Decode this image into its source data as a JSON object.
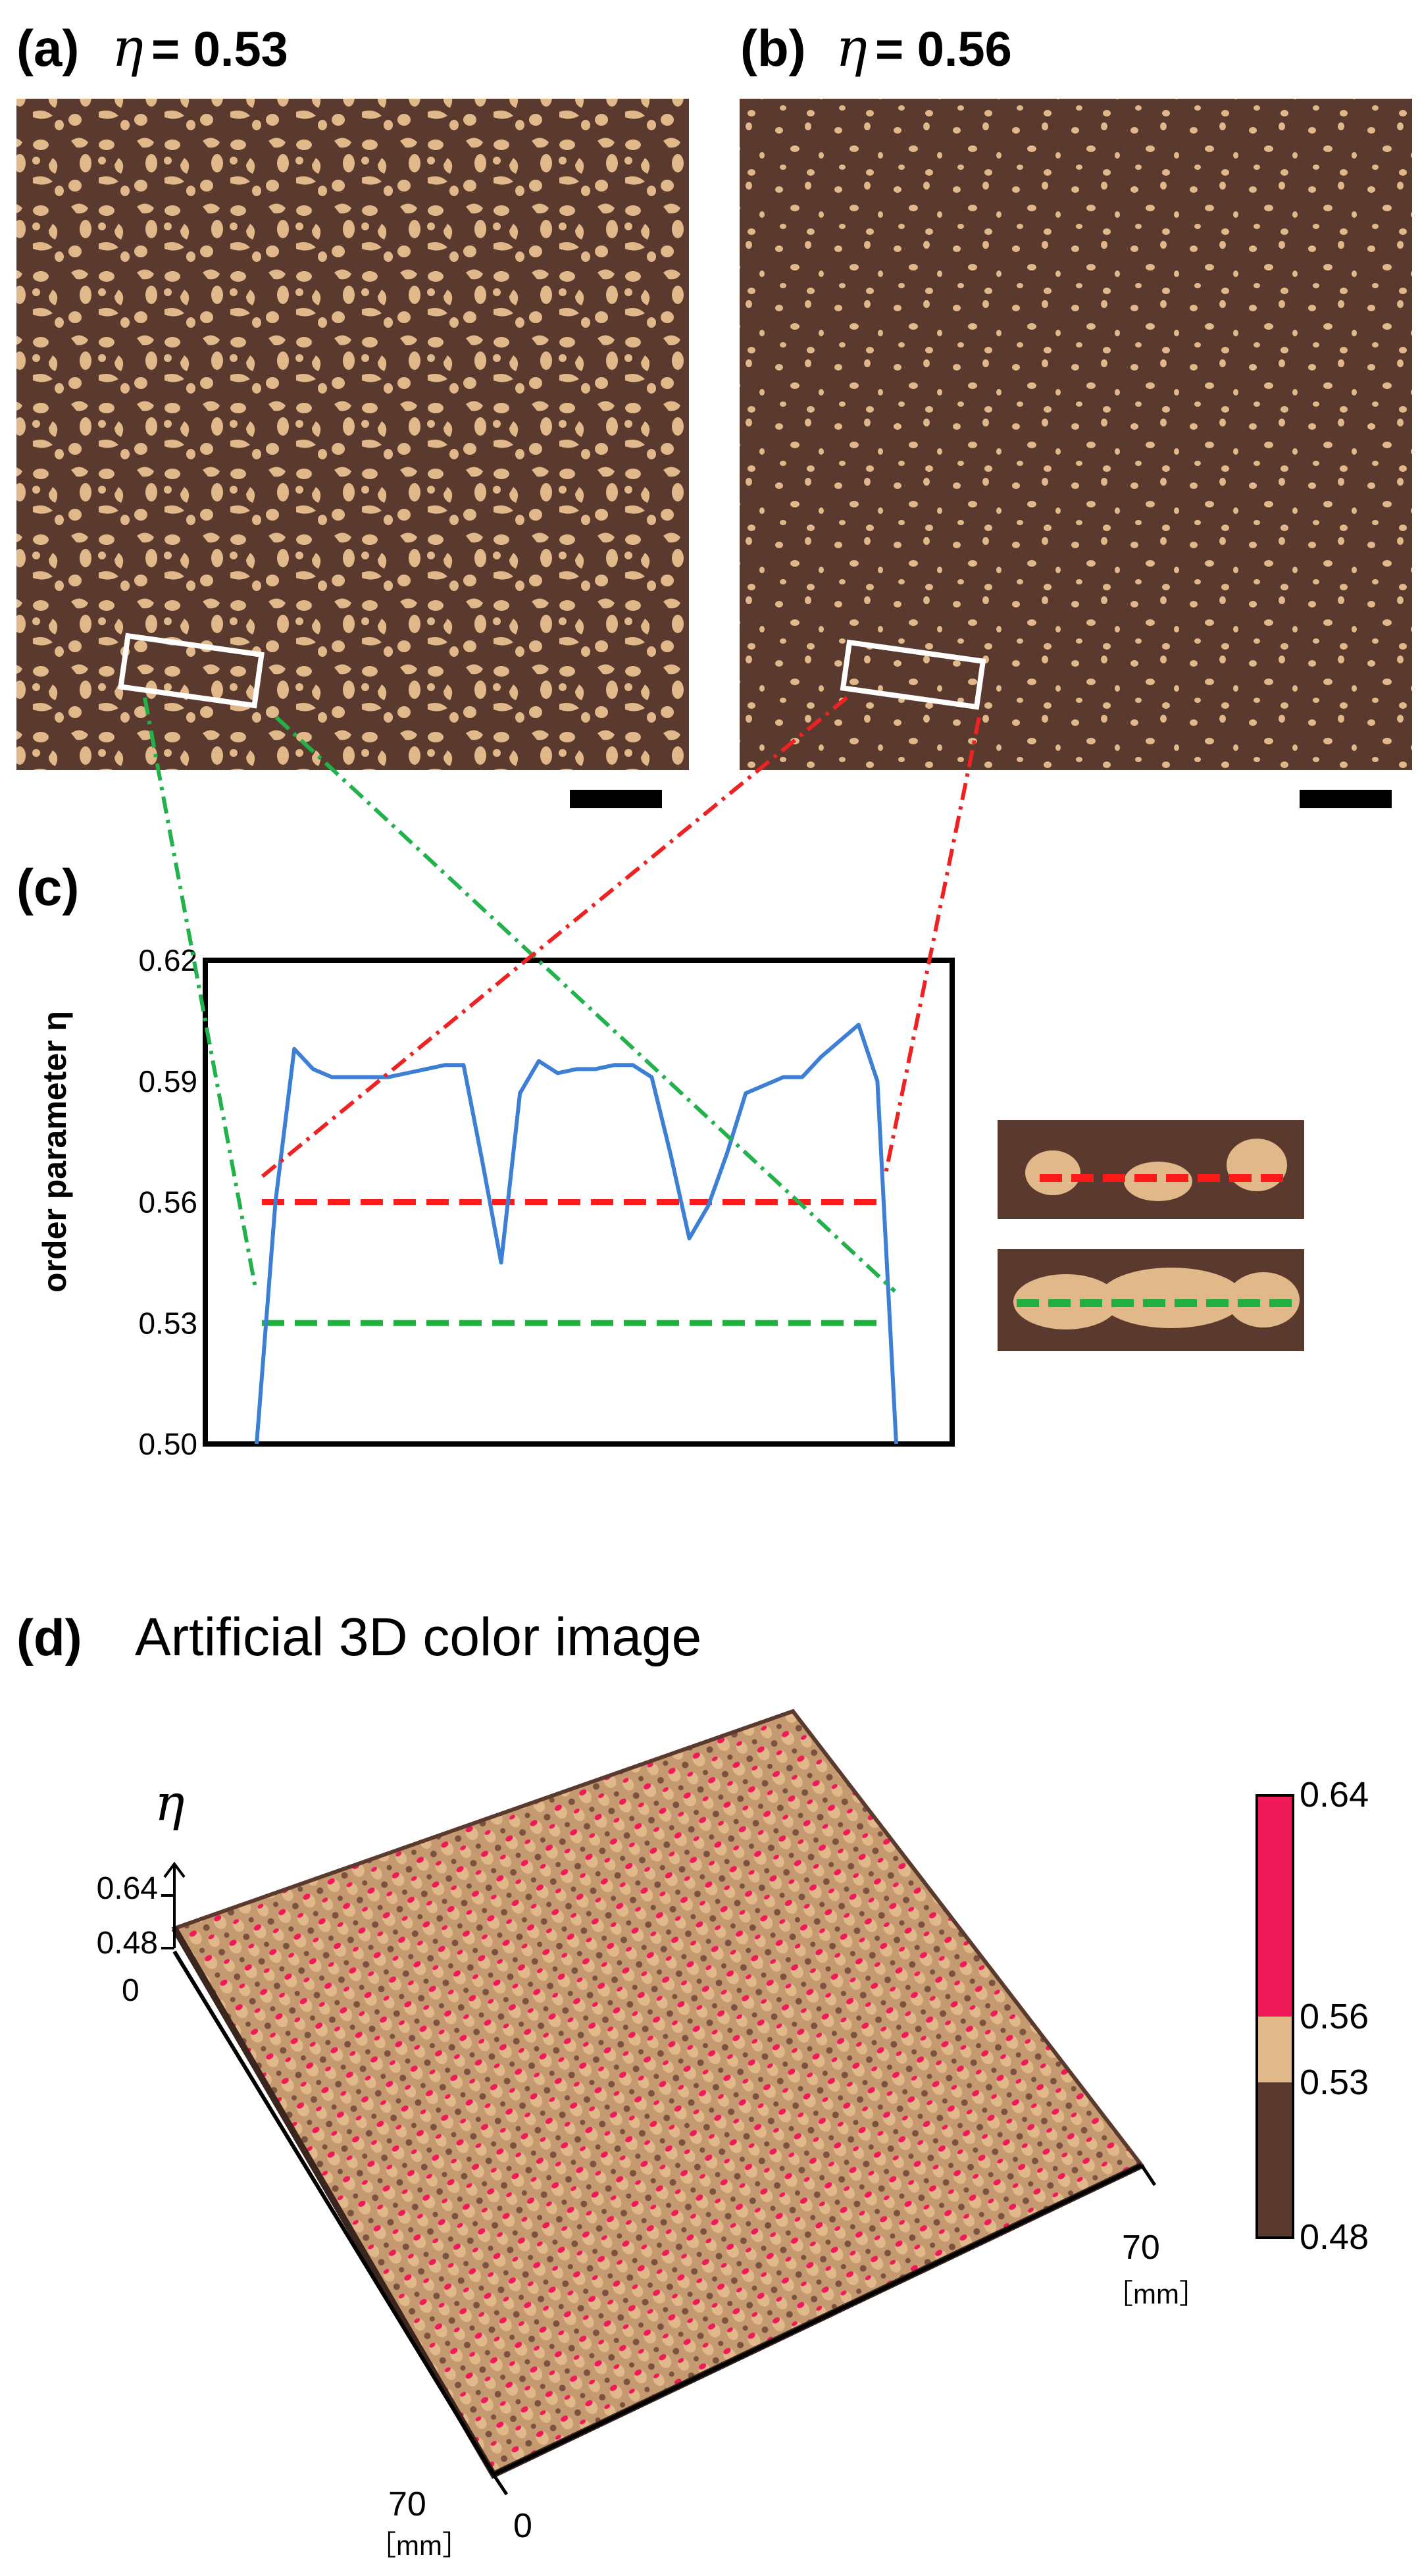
{
  "panels": {
    "a": {
      "label": "(a)",
      "symbol": "η",
      "value": "= 0.53"
    },
    "b": {
      "label": "(b)",
      "symbol": "η",
      "value": "= 0.56"
    },
    "c": {
      "label": "(c)"
    },
    "d": {
      "label": "(d)",
      "title": "Artificial 3D color image"
    }
  },
  "colors": {
    "background_brown": "#5a3a2e",
    "pattern_tan": "#e1b889",
    "peak_pink": "#f0195a",
    "plot_line": "#3d7fd4",
    "threshold_red": "#ff1a1a",
    "threshold_green": "#20b040",
    "connector_green": "#22b24c",
    "connector_red": "#ee2222"
  },
  "chart_data": {
    "type": "line",
    "ylabel": "order parameter η",
    "ylim": [
      0.5,
      0.62
    ],
    "yticks": [
      "0.62",
      "0.59",
      "0.56",
      "0.53",
      "0.50"
    ],
    "series": [
      {
        "values": [
          0.5,
          0.56,
          0.598,
          0.593,
          0.591,
          0.591,
          0.591,
          0.591,
          0.592,
          0.593,
          0.594,
          0.594,
          0.57,
          0.545,
          0.587,
          0.595,
          0.592,
          0.593,
          0.593,
          0.594,
          0.594,
          0.591,
          0.572,
          0.551,
          0.559,
          0.572,
          0.587,
          0.589,
          0.591,
          0.591,
          0.596,
          0.6,
          0.604,
          0.59,
          0.5
        ]
      }
    ],
    "thresholds": [
      {
        "value": 0.56,
        "style": "red-dashed"
      },
      {
        "value": 0.53,
        "style": "green-dashed"
      }
    ]
  },
  "plot3d": {
    "axis_symbol": "η",
    "z_ticks": [
      "0.64",
      "0.48"
    ],
    "origin": "0",
    "x_end": "70",
    "x_unit": "［mm］",
    "y_end": "70",
    "y_unit": "［mm］",
    "y_origin": "0"
  },
  "colorbar": {
    "ticks": [
      "0.64",
      "0.56",
      "0.53",
      "0.48"
    ]
  }
}
